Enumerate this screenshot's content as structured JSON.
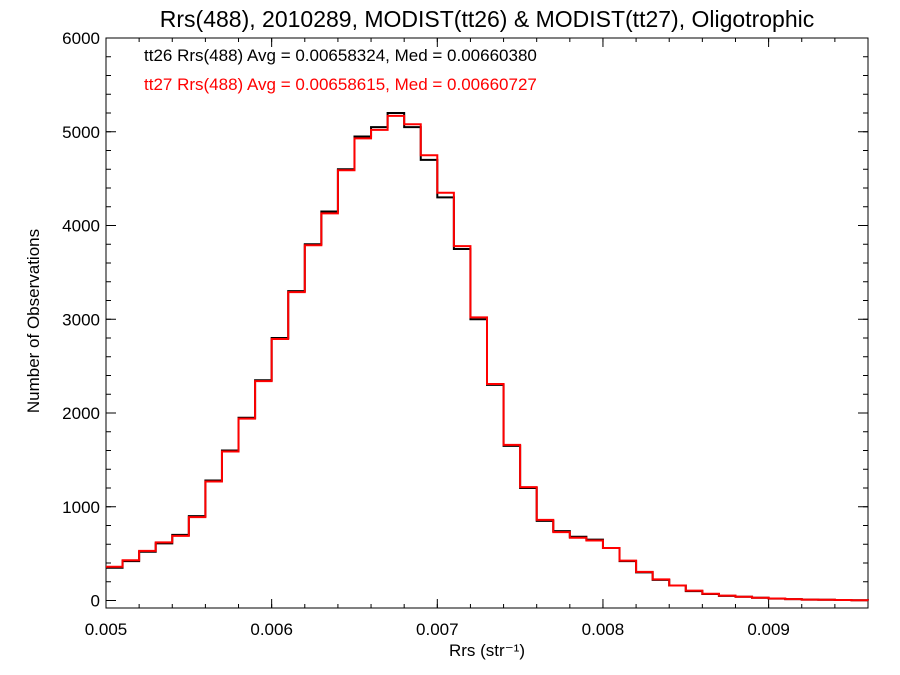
{
  "chart_data": {
    "type": "line",
    "step": true,
    "title": "Rrs(488), 2010289, MODIST(tt26) & MODIST(tt27), Oligotrophic",
    "xlabel": "Rrs (str⁻¹)",
    "ylabel": "Number of Observations",
    "xlim": [
      0.005,
      0.0096
    ],
    "ylim": [
      -80,
      6000
    ],
    "x_ticks": [
      0.005,
      0.006,
      0.007,
      0.008,
      0.009
    ],
    "x_tick_labels": [
      "0.005",
      "0.006",
      "0.007",
      "0.008",
      "0.009"
    ],
    "y_ticks": [
      0,
      1000,
      2000,
      3000,
      4000,
      5000,
      6000
    ],
    "y_tick_labels": [
      "0",
      "1000",
      "2000",
      "3000",
      "4000",
      "5000",
      "6000"
    ],
    "grid": false,
    "legend_placement": "top-left",
    "series": [
      {
        "name": "tt26 Rrs(488) Avg = 0.00658324, Med = 0.00660380",
        "color": "#000000",
        "x": [
          0.005,
          0.0051,
          0.0052,
          0.0053,
          0.0054,
          0.0055,
          0.0056,
          0.0057,
          0.0058,
          0.0059,
          0.006,
          0.0061,
          0.0062,
          0.0063,
          0.0064,
          0.0065,
          0.0066,
          0.0067,
          0.0068,
          0.0069,
          0.007,
          0.0071,
          0.0072,
          0.0073,
          0.0074,
          0.0075,
          0.0076,
          0.0077,
          0.0078,
          0.0079,
          0.008,
          0.0081,
          0.0082,
          0.0083,
          0.0084,
          0.0085,
          0.0086,
          0.0087,
          0.0088,
          0.0089,
          0.009,
          0.0091,
          0.0092,
          0.0093,
          0.0094,
          0.0095,
          0.0096
        ],
        "y": [
          350,
          420,
          520,
          610,
          700,
          900,
          1280,
          1600,
          1950,
          2350,
          2800,
          3300,
          3800,
          4150,
          4600,
          4950,
          5050,
          5200,
          5050,
          4700,
          4300,
          3750,
          3000,
          2300,
          1650,
          1200,
          850,
          740,
          680,
          650,
          560,
          420,
          300,
          220,
          160,
          100,
          70,
          50,
          40,
          30,
          20,
          15,
          10,
          8,
          5,
          3,
          2
        ]
      },
      {
        "name": "tt27 Rrs(488) Avg = 0.00658615, Med = 0.00660727",
        "color": "#ff0000",
        "x": [
          0.005,
          0.0051,
          0.0052,
          0.0053,
          0.0054,
          0.0055,
          0.0056,
          0.0057,
          0.0058,
          0.0059,
          0.006,
          0.0061,
          0.0062,
          0.0063,
          0.0064,
          0.0065,
          0.0066,
          0.0067,
          0.0068,
          0.0069,
          0.007,
          0.0071,
          0.0072,
          0.0073,
          0.0074,
          0.0075,
          0.0076,
          0.0077,
          0.0078,
          0.0079,
          0.008,
          0.0081,
          0.0082,
          0.0083,
          0.0084,
          0.0085,
          0.0086,
          0.0087,
          0.0088,
          0.0089,
          0.009,
          0.0091,
          0.0092,
          0.0093,
          0.0094,
          0.0095,
          0.0096
        ],
        "y": [
          360,
          430,
          530,
          620,
          690,
          890,
          1270,
          1590,
          1940,
          2340,
          2790,
          3290,
          3790,
          4130,
          4590,
          4930,
          5020,
          5170,
          5080,
          4750,
          4350,
          3780,
          3020,
          2310,
          1660,
          1210,
          860,
          730,
          670,
          640,
          560,
          425,
          305,
          225,
          160,
          105,
          72,
          52,
          40,
          30,
          22,
          15,
          10,
          8,
          5,
          3,
          2
        ]
      }
    ]
  }
}
